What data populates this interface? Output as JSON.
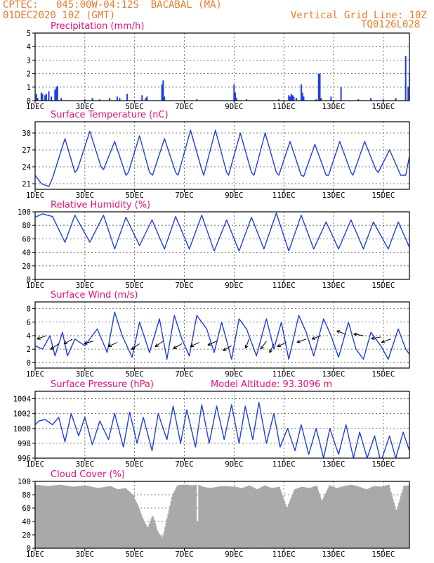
{
  "header": {
    "line1_left": "CPTEC:   045:00W-04:12S  BACABAL (MA)",
    "line2_left": "01DEC2020 10Z (GMT)",
    "line1_right": "Vertical Grid Line: 10Z",
    "line2_right": "TQ0126L028"
  },
  "colors": {
    "header": "#e87b2c",
    "title": "#e0117f",
    "series": "#1f3fe0",
    "cloud": "#a9a9a9"
  },
  "x_axis": {
    "ticks": [
      "1DEC",
      "3DEC",
      "5DEC",
      "7DEC",
      "9DEC",
      "11DEC",
      "13DEC",
      "15DEC"
    ],
    "tick_days": [
      0,
      2,
      4,
      6,
      8,
      10,
      12,
      14
    ],
    "range_days": [
      0,
      15.05
    ]
  },
  "chart_data": [
    {
      "id": "precip",
      "type": "bar",
      "title": "Precipitation (mm/h)",
      "ylim": [
        0,
        5
      ],
      "yticks": [
        0,
        1,
        2,
        3,
        4,
        5
      ],
      "grid": true,
      "x_days": [
        0.05,
        0.1,
        0.25,
        0.3,
        0.4,
        0.45,
        0.55,
        0.65,
        0.8,
        0.85,
        0.9,
        1.05,
        2.0,
        2.3,
        2.6,
        3.0,
        3.3,
        3.4,
        3.7,
        4.3,
        4.45,
        4.5,
        5.1,
        5.15,
        5.2,
        6.5,
        8.0,
        8.05,
        8.1,
        8.5,
        9.8,
        10.2,
        10.25,
        10.3,
        10.35,
        10.4,
        10.5,
        10.7,
        10.75,
        10.8,
        11.3,
        11.4,
        11.45,
        11.5,
        11.9,
        12.3,
        13.0,
        13.5,
        14.0,
        14.5,
        14.9,
        15.0,
        15.05
      ],
      "values": [
        0.5,
        0.2,
        0.6,
        0.5,
        0.4,
        0.5,
        0.7,
        0.3,
        0.8,
        1.0,
        1.1,
        0.2,
        0.1,
        0.2,
        0.1,
        0.2,
        0.3,
        0.2,
        0.5,
        0.4,
        0.2,
        0.3,
        1.2,
        1.5,
        0.3,
        0.1,
        1.2,
        0.6,
        0.2,
        0.1,
        0.1,
        0.4,
        0.3,
        0.5,
        0.4,
        0.3,
        0.2,
        1.2,
        0.6,
        0.3,
        0.1,
        2.0,
        2.0,
        0.2,
        0.3,
        1.0,
        0.1,
        0.2,
        0.1,
        0.2,
        3.3,
        1.0,
        2.0
      ]
    },
    {
      "id": "temperature",
      "type": "line",
      "title": "Surface Temperature (nC)",
      "ylim": [
        20,
        32
      ],
      "yticks": [
        21,
        24,
        27,
        30
      ],
      "grid": true,
      "x_days": [
        0.0,
        0.25,
        0.55,
        0.7,
        1.2,
        1.6,
        1.7,
        2.2,
        2.65,
        2.75,
        3.2,
        3.65,
        3.75,
        4.2,
        4.6,
        4.72,
        5.2,
        5.65,
        5.75,
        6.25,
        6.7,
        6.78,
        7.25,
        7.7,
        7.78,
        8.25,
        8.7,
        8.8,
        9.25,
        9.7,
        9.8,
        10.25,
        10.7,
        10.8,
        11.25,
        11.7,
        11.8,
        12.25,
        12.7,
        12.78,
        13.25,
        13.7,
        13.8,
        14.25,
        14.7,
        14.9,
        15.3,
        15.65,
        16.0
      ],
      "values": [
        22.5,
        21.0,
        20.5,
        22.0,
        29.0,
        23.0,
        23.5,
        30.3,
        24.0,
        23.5,
        28.5,
        22.5,
        23.0,
        29.5,
        23.0,
        22.5,
        29.0,
        23.0,
        22.5,
        30.5,
        23.5,
        22.5,
        30.5,
        23.0,
        22.5,
        30.0,
        23.0,
        22.5,
        30.0,
        23.0,
        22.5,
        28.5,
        22.5,
        22.3,
        28.0,
        22.5,
        22.5,
        28.5,
        23.0,
        22.5,
        28.5,
        23.5,
        23.0,
        27.0,
        22.5,
        22.5,
        31.5,
        23.0,
        25.0
      ]
    },
    {
      "id": "humidity",
      "type": "line",
      "title": "Relative Humidity (%)",
      "ylim": [
        0,
        100
      ],
      "yticks": [
        0,
        20,
        40,
        60,
        80,
        100
      ],
      "grid": true,
      "x_days": [
        0.0,
        0.3,
        0.7,
        1.2,
        1.6,
        2.2,
        2.75,
        3.2,
        3.65,
        4.2,
        4.7,
        5.2,
        5.65,
        6.2,
        6.7,
        7.2,
        7.7,
        8.2,
        8.7,
        9.2,
        9.7,
        10.2,
        10.7,
        11.2,
        11.7,
        12.2,
        12.7,
        13.2,
        13.6,
        14.2,
        14.6,
        15.2,
        15.6,
        16.0
      ],
      "values": [
        92.0,
        97.0,
        93.0,
        55.0,
        95.0,
        55.0,
        95.0,
        45.0,
        92.0,
        50.0,
        88.0,
        45.0,
        93.0,
        45.0,
        95.0,
        42.0,
        88.0,
        42.0,
        92.0,
        45.0,
        98.0,
        42.0,
        95.0,
        45.0,
        85.0,
        45.0,
        88.0,
        45.0,
        85.0,
        45.0,
        85.0,
        35.0,
        78.0,
        80.0
      ]
    },
    {
      "id": "wind",
      "type": "line",
      "title": "Surface Wind (m/s)",
      "ylim": [
        -0.8,
        9
      ],
      "yticks": [
        0,
        2,
        4,
        6,
        8
      ],
      "grid": true,
      "x_days": [
        0.0,
        0.3,
        0.6,
        0.8,
        1.1,
        1.3,
        1.6,
        2.0,
        2.5,
        2.9,
        3.2,
        3.5,
        3.9,
        4.2,
        4.6,
        5.0,
        5.3,
        5.6,
        5.9,
        6.2,
        6.5,
        6.9,
        7.2,
        7.5,
        7.9,
        8.2,
        8.5,
        8.9,
        9.3,
        9.6,
        9.9,
        10.2,
        10.6,
        10.9,
        11.2,
        11.6,
        11.9,
        12.2,
        12.6,
        12.9,
        13.2,
        13.5,
        13.9,
        14.2,
        14.6,
        14.9,
        15.2,
        15.5,
        15.8,
        16.0
      ],
      "values": [
        2.5,
        2.0,
        4.0,
        1.0,
        4.5,
        1.0,
        3.5,
        2.5,
        5.0,
        1.5,
        7.5,
        4.0,
        0.8,
        6.0,
        1.5,
        6.5,
        0.5,
        7.0,
        3.5,
        1.0,
        7.0,
        5.0,
        1.5,
        6.0,
        0.5,
        6.5,
        5.0,
        1.0,
        6.5,
        2.0,
        6.0,
        0.5,
        7.0,
        4.5,
        1.0,
        6.5,
        4.0,
        0.8,
        6.0,
        2.0,
        0.5,
        4.5,
        2.5,
        0.5,
        5.0,
        2.0,
        0.5,
        3.5,
        2.5,
        3.0
      ],
      "arrows": [
        {
          "day": 0.45,
          "y": 4.0,
          "angle": 200
        },
        {
          "day": 0.95,
          "y": 2.8,
          "angle": 215
        },
        {
          "day": 1.5,
          "y": 3.5,
          "angle": 210
        },
        {
          "day": 2.35,
          "y": 3.2,
          "angle": 195
        },
        {
          "day": 3.3,
          "y": 3.0,
          "angle": 205
        },
        {
          "day": 4.2,
          "y": 2.8,
          "angle": 215
        },
        {
          "day": 5.15,
          "y": 3.2,
          "angle": 215
        },
        {
          "day": 5.9,
          "y": 2.8,
          "angle": 210
        },
        {
          "day": 6.6,
          "y": 3.0,
          "angle": 205
        },
        {
          "day": 7.3,
          "y": 3.2,
          "angle": 205
        },
        {
          "day": 7.9,
          "y": 2.5,
          "angle": 210
        },
        {
          "day": 8.6,
          "y": 3.5,
          "angle": 250
        },
        {
          "day": 9.3,
          "y": 3.2,
          "angle": 235
        },
        {
          "day": 9.6,
          "y": 2.8,
          "angle": 245
        },
        {
          "day": 10.1,
          "y": 3.0,
          "angle": 205
        },
        {
          "day": 10.9,
          "y": 3.5,
          "angle": 200
        },
        {
          "day": 11.5,
          "y": 4.0,
          "angle": 200
        },
        {
          "day": 12.5,
          "y": 4.2,
          "angle": 160
        },
        {
          "day": 13.2,
          "y": 4.0,
          "angle": 170
        },
        {
          "day": 13.9,
          "y": 3.8,
          "angle": 190
        },
        {
          "day": 14.3,
          "y": 3.5,
          "angle": 200
        }
      ]
    },
    {
      "id": "pressure",
      "type": "line",
      "title": "Surface Pressure (hPa)",
      "annotation": "Model Altitude: 93.3096  m",
      "ylim": [
        996,
        1005
      ],
      "yticks": [
        996,
        998,
        1000,
        1002,
        1004
      ],
      "grid": true,
      "x_days": [
        0.0,
        0.15,
        0.4,
        0.7,
        0.95,
        1.2,
        1.45,
        1.75,
        2.0,
        2.3,
        2.6,
        2.95,
        3.2,
        3.55,
        3.8,
        4.1,
        4.35,
        4.7,
        4.95,
        5.3,
        5.55,
        5.85,
        6.1,
        6.45,
        6.7,
        7.0,
        7.3,
        7.6,
        7.9,
        8.2,
        8.45,
        8.75,
        9.0,
        9.3,
        9.6,
        9.85,
        10.15,
        10.45,
        10.7,
        11.0,
        11.3,
        11.6,
        11.85,
        12.2,
        12.5,
        12.8,
        13.05,
        13.35,
        13.65,
        13.9,
        14.25,
        14.5,
        14.8,
        15.05,
        15.3,
        15.6,
        15.85,
        16.0
      ],
      "values": [
        1000.5,
        1001.0,
        1001.2,
        1000.5,
        1001.5,
        998.2,
        1002.0,
        999.0,
        1001.5,
        997.8,
        1001.0,
        998.5,
        1002.0,
        997.5,
        1002.2,
        998.0,
        1001.5,
        997.0,
        1002.0,
        998.5,
        1003.0,
        998.0,
        1002.5,
        997.5,
        1003.2,
        998.0,
        1003.0,
        998.5,
        1003.2,
        998.0,
        1003.0,
        998.5,
        1003.5,
        998.0,
        1002.0,
        997.5,
        1000.0,
        997.0,
        1000.5,
        996.5,
        1000.0,
        996.0,
        1000.0,
        996.5,
        1000.5,
        996.0,
        999.5,
        996.0,
        999.0,
        995.5,
        999.0,
        996.0,
        999.5,
        997.0,
        998.5,
        995.5,
        997.5,
        999.0
      ]
    },
    {
      "id": "cloud",
      "type": "area",
      "title": "Cloud Cover (%)",
      "ylim": [
        0,
        100
      ],
      "yticks": [
        0,
        20,
        40,
        60,
        80,
        100
      ],
      "grid": true,
      "x_days": [
        0.0,
        0.5,
        1.0,
        1.5,
        2.0,
        2.5,
        3.0,
        3.3,
        3.6,
        3.9,
        4.1,
        4.3,
        4.5,
        4.7,
        4.9,
        5.1,
        5.3,
        5.5,
        5.7,
        5.9,
        6.1,
        6.3,
        6.45,
        6.5,
        6.55,
        6.7,
        7.0,
        7.5,
        8.0,
        8.3,
        8.6,
        8.9,
        9.2,
        9.5,
        9.8,
        10.1,
        10.4,
        10.7,
        11.0,
        11.3,
        11.5,
        11.8,
        12.1,
        12.4,
        12.7,
        13.0,
        13.3,
        13.6,
        13.9,
        14.2,
        14.5,
        14.8,
        15.1,
        15.4,
        15.7,
        16.0
      ],
      "values": [
        95,
        93,
        95,
        92,
        94,
        90,
        93,
        88,
        90,
        80,
        65,
        45,
        30,
        50,
        25,
        15,
        48,
        80,
        94,
        95,
        95,
        94,
        95,
        3,
        95,
        92,
        90,
        93,
        92,
        90,
        94,
        88,
        94,
        90,
        92,
        60,
        88,
        92,
        90,
        94,
        70,
        94,
        90,
        93,
        95,
        92,
        88,
        93,
        92,
        95,
        55,
        93,
        95,
        94,
        90,
        96
      ]
    }
  ]
}
